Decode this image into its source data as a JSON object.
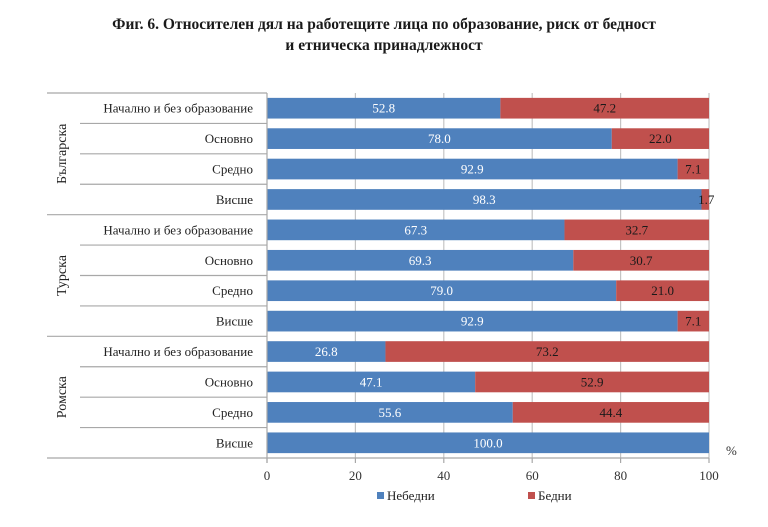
{
  "title_line1": "Фиг. 6. Относителен дял на работещите лица по образование, риск от бедност",
  "title_line2": "и етническа принадлежност",
  "chart_data": {
    "type": "bar",
    "orientation": "horizontal",
    "stacked": true,
    "title": "Фиг. 6. Относителен дял на работещите лица по образование, риск от бедност и етническа принадлежност",
    "xlabel": "%",
    "ylabel": "",
    "xlim": [
      0,
      100
    ],
    "x_ticks": [
      0,
      20,
      40,
      60,
      80,
      100
    ],
    "grid": "vertical",
    "legend_position": "bottom",
    "groups": [
      {
        "name": "Българска",
        "categories": [
          "Начално и без образование",
          "Основно",
          "Средно",
          "Висше"
        ]
      },
      {
        "name": "Турска",
        "categories": [
          "Начално и без образование",
          "Основно",
          "Средно",
          "Висше"
        ]
      },
      {
        "name": "Ромска",
        "categories": [
          "Начално и без образование",
          "Основно",
          "Средно",
          "Висше"
        ]
      }
    ],
    "series": [
      {
        "name": "Небедни",
        "color": "#4F81BD",
        "values": [
          52.8,
          78.0,
          92.9,
          98.3,
          67.3,
          69.3,
          79.0,
          92.9,
          26.8,
          47.1,
          55.6,
          100.0
        ],
        "labels": [
          "52.8",
          "78.0",
          "92.9",
          "98.3",
          "67.3",
          "69.3",
          "79.0",
          "92.9",
          "26.8",
          "47.1",
          "55.6",
          "100.0"
        ]
      },
      {
        "name": "Бедни",
        "color": "#C0504D",
        "values": [
          47.2,
          22.0,
          7.1,
          1.7,
          32.7,
          30.7,
          21.0,
          7.1,
          73.2,
          52.9,
          44.4,
          0.0
        ],
        "labels": [
          "47.2",
          "22.0",
          "7.1",
          "1.7",
          "32.7",
          "30.7",
          "21.0",
          "7.1",
          "73.2",
          "52.9",
          "44.4",
          ""
        ]
      }
    ]
  }
}
